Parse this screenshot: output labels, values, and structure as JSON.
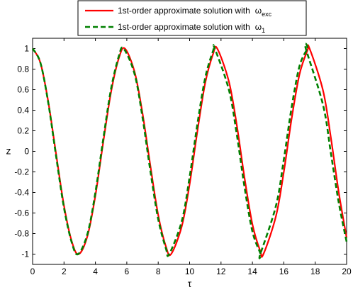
{
  "chart_data": {
    "type": "line",
    "xlabel": "τ",
    "ylabel": "z",
    "xlim": [
      0,
      20
    ],
    "ylim": [
      -1.1,
      1.1
    ],
    "x_ticks": [
      "0",
      "2",
      "4",
      "6",
      "8",
      "10",
      "12",
      "14",
      "16",
      "18",
      "20"
    ],
    "y_ticks": [
      "-1",
      "-0.8",
      "-0.6",
      "-0.4",
      "-0.2",
      "0",
      "0.2",
      "0.4",
      "0.6",
      "0.8",
      "1"
    ],
    "grid": false,
    "legend_position": "top-center",
    "series": [
      {
        "legend_main": "1st-order approximate solution with",
        "legend_symbol": "ω",
        "legend_subscript": "exc",
        "color": "#ff0000",
        "style": "solid",
        "x": [
          0,
          0.5,
          1,
          1.5,
          2,
          2.5,
          2.94,
          3.5,
          4,
          4.5,
          5,
          5.5,
          5.88,
          6.5,
          7,
          7.5,
          8,
          8.5,
          8.82,
          9.5,
          10,
          10.5,
          11,
          11.5,
          11.76,
          12.5,
          13,
          13.5,
          14,
          14.5,
          14.7,
          15.5,
          16,
          16.5,
          17,
          17.5,
          17.64,
          18.5,
          19,
          19.5,
          20
        ],
        "y": [
          1,
          0.86,
          0.48,
          -0.03,
          -0.53,
          -0.88,
          -1,
          -0.82,
          -0.43,
          0.09,
          0.58,
          0.91,
          1,
          0.77,
          0.37,
          -0.14,
          -0.62,
          -0.93,
          -1,
          -0.73,
          -0.32,
          0.2,
          0.67,
          0.95,
          1,
          0.68,
          0.26,
          -0.26,
          -0.71,
          -0.97,
          -1,
          -0.63,
          -0.2,
          0.32,
          0.75,
          0.98,
          1,
          0.59,
          0.13,
          -0.4,
          -0.84
        ]
      },
      {
        "legend_main": "1st-order approximate solution with",
        "legend_symbol": "ω",
        "legend_subscript": "1",
        "color": "#008000",
        "style": "dashed",
        "x": [
          0,
          0.5,
          1,
          1.5,
          2,
          2.5,
          2.9,
          3.5,
          4,
          4.5,
          5,
          5.5,
          5.8,
          6.5,
          7,
          7.5,
          8,
          8.5,
          8.7,
          9.5,
          10,
          10.5,
          11,
          11.5,
          11.6,
          12.5,
          13,
          13.5,
          14,
          14.5,
          14.5,
          15.5,
          16,
          16.5,
          17,
          17.5,
          17.4,
          18.5,
          19,
          19.5,
          20
        ],
        "y": [
          1,
          0.86,
          0.47,
          -0.05,
          -0.55,
          -0.89,
          -1,
          -0.8,
          -0.4,
          0.12,
          0.61,
          0.93,
          1,
          0.75,
          0.33,
          -0.19,
          -0.66,
          -0.95,
          -1,
          -0.68,
          -0.25,
          0.27,
          0.72,
          0.98,
          1,
          0.6,
          0.17,
          -0.35,
          -0.78,
          -0.99,
          -1,
          -0.53,
          -0.08,
          0.43,
          0.83,
          1,
          1,
          0.45,
          -0.02,
          -0.5,
          -0.88
        ]
      }
    ]
  }
}
